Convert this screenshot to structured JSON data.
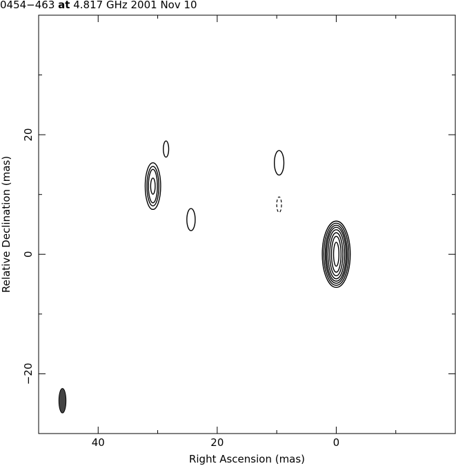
{
  "chart_data": {
    "type": "contour",
    "title": {
      "source": "0454−463",
      "word_at": "at",
      "frequency": "4.817 GHz",
      "date": "2001 Nov 10"
    },
    "xlabel": "Right Ascension  (mas)",
    "ylabel": "Relative Declination  (mas)",
    "xlim": [
      50,
      -20
    ],
    "ylim": [
      -30,
      40
    ],
    "x_reversed": true,
    "x_ticks": [
      {
        "value": 40,
        "label": "40"
      },
      {
        "value": 20,
        "label": "20"
      },
      {
        "value": 0,
        "label": "0"
      }
    ],
    "x_minor_ticks": [
      30,
      10,
      -10
    ],
    "y_ticks": [
      {
        "value": 20,
        "label": "20"
      },
      {
        "value": 0,
        "label": "0"
      },
      {
        "value": -20,
        "label": "−20"
      }
    ],
    "y_minor_ticks": [
      30,
      10,
      -10
    ],
    "grid": false,
    "line_color": "#000000",
    "beam_color": "#444444",
    "components": [
      {
        "name": "core",
        "x": 0,
        "y": 0,
        "contours": [
          {
            "a": 0.45,
            "b": 2.0
          },
          {
            "a": 0.8,
            "b": 3.0
          },
          {
            "a": 1.1,
            "b": 3.6
          },
          {
            "a": 1.4,
            "b": 4.1
          },
          {
            "a": 1.65,
            "b": 4.5
          },
          {
            "a": 1.85,
            "b": 4.85
          },
          {
            "a": 2.1,
            "b": 5.2
          },
          {
            "a": 2.35,
            "b": 5.55
          }
        ]
      },
      {
        "name": "jet-knot-bright",
        "x": 30.8,
        "y": 11.4,
        "contours": [
          {
            "a": 0.38,
            "b": 1.35
          },
          {
            "a": 0.75,
            "b": 2.8
          },
          {
            "a": 1.0,
            "b": 3.3
          },
          {
            "a": 1.3,
            "b": 3.9
          }
        ]
      },
      {
        "name": "jet-knot-north",
        "x": 28.6,
        "y": 17.6,
        "contours": [
          {
            "a": 0.45,
            "b": 1.35
          }
        ]
      },
      {
        "name": "jet-knot-south",
        "x": 24.4,
        "y": 5.8,
        "contours": [
          {
            "a": 0.7,
            "b": 1.85
          }
        ]
      },
      {
        "name": "jet-knot-east",
        "x": 9.6,
        "y": 15.3,
        "contours": [
          {
            "a": 0.8,
            "b": 2.05
          }
        ]
      }
    ],
    "negative_contours": [
      {
        "name": "negative-contour",
        "x": 9.6,
        "y": 8.3,
        "a": 0.4,
        "b": 1.3
      }
    ],
    "beam": {
      "x": 46,
      "y": -24.5,
      "a": 0.6,
      "b": 2.05
    }
  }
}
